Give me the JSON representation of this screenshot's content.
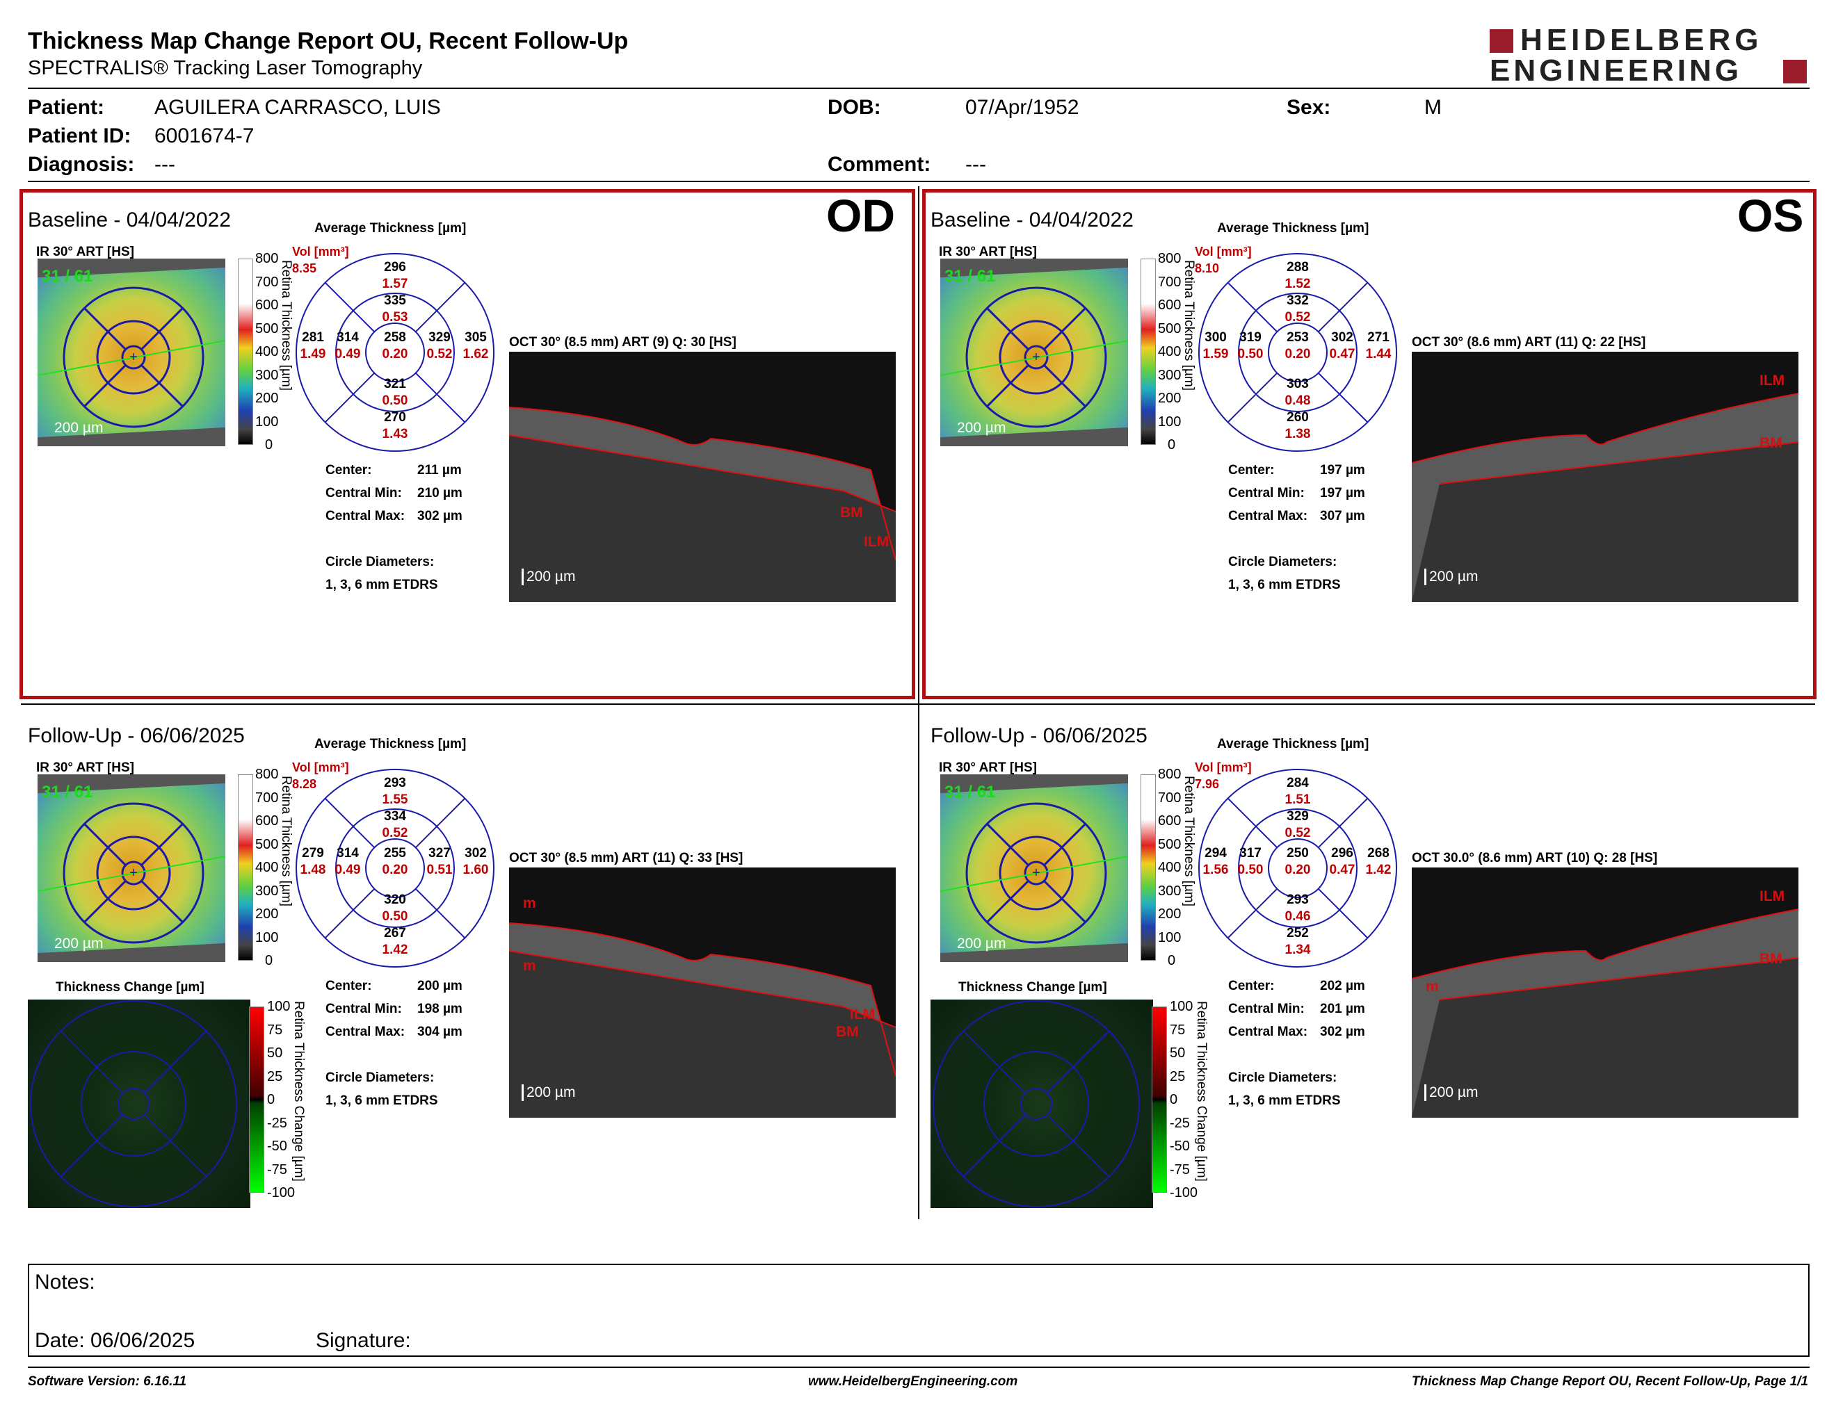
{
  "header": {
    "title": "Thickness Map Change Report OU, Recent Follow-Up",
    "subtitle": "SPECTRALIS® Tracking Laser Tomography",
    "logo_line1": "HEIDELBERG",
    "logo_line2": "ENGINEERING",
    "colors": {
      "brand": "#9b1c2a",
      "frame": "#b01010"
    }
  },
  "patient": {
    "name_label": "Patient:",
    "name": "AGUILERA CARRASCO, LUIS",
    "id_label": "Patient ID:",
    "id": "6001674-7",
    "diagnosis_label": "Diagnosis:",
    "diagnosis": "---",
    "dob_label": "DOB:",
    "dob": "07/Apr/1952",
    "comment_label": "Comment:",
    "comment": "---",
    "sex_label": "Sex:",
    "sex": "M"
  },
  "common": {
    "ir_label": "IR 30° ART [HS]",
    "avg_title": "Average Thickness [µm]",
    "vol_label": "Vol [mm³]",
    "scale_200": "200 µm",
    "center_label": "Center:",
    "cmin_label": "Central Min:",
    "cmax_label": "Central Max:",
    "circ_label": "Circle Diameters:",
    "circ_value": "1, 3, 6 mm ETDRS",
    "retina_axis": "Retina Thickness [µm]",
    "change_title": "Thickness Change [µm]",
    "change_axis": "Retina Thickness Change [µm]",
    "cbar_ticks": [
      "800",
      "700",
      "600",
      "500",
      "400",
      "300",
      "200",
      "100",
      "0"
    ],
    "change_ticks": [
      "100",
      "75",
      "50",
      "25",
      "0",
      "-25",
      "-50",
      "-75",
      "-100"
    ],
    "fixation": "31 / 61"
  },
  "od_label": "OD",
  "os_label": "OS",
  "od_base": {
    "title": "Baseline - 04/04/2022",
    "oct_label": "OCT 30° (8.5 mm) ART (9) Q: 30 [HS]",
    "vol": "8.35",
    "grid": {
      "outer_sup": [
        "296",
        "1.57"
      ],
      "inner_sup": [
        "335",
        "0.53"
      ],
      "outer_temp": [
        "281",
        "1.49"
      ],
      "inner_temp": [
        "314",
        "0.49"
      ],
      "center": [
        "258",
        "0.20"
      ],
      "inner_nas": [
        "329",
        "0.52"
      ],
      "outer_nas": [
        "305",
        "1.62"
      ],
      "inner_inf": [
        "321",
        "0.50"
      ],
      "outer_inf": [
        "270",
        "1.43"
      ]
    },
    "center": "211 µm",
    "cmin": "210 µm",
    "cmax": "302 µm",
    "tags": [
      "BM",
      "ILM"
    ]
  },
  "os_base": {
    "title": "Baseline - 04/04/2022",
    "oct_label": "OCT 30° (8.6 mm) ART (11) Q: 22 [HS]",
    "vol": "8.10",
    "grid": {
      "outer_sup": [
        "288",
        "1.52"
      ],
      "inner_sup": [
        "332",
        "0.52"
      ],
      "outer_temp": [
        "300",
        "1.59"
      ],
      "inner_temp": [
        "319",
        "0.50"
      ],
      "center": [
        "253",
        "0.20"
      ],
      "inner_nas": [
        "302",
        "0.47"
      ],
      "outer_nas": [
        "271",
        "1.44"
      ],
      "inner_inf": [
        "303",
        "0.48"
      ],
      "outer_inf": [
        "260",
        "1.38"
      ]
    },
    "center": "197 µm",
    "cmin": "197 µm",
    "cmax": "307 µm",
    "tags": [
      "ILM",
      "BM"
    ]
  },
  "od_follow": {
    "title": "Follow-Up - 06/06/2025",
    "oct_label": "OCT 30° (8.5 mm) ART (11) Q: 33 [HS]",
    "vol": "8.28",
    "grid": {
      "outer_sup": [
        "293",
        "1.55"
      ],
      "inner_sup": [
        "334",
        "0.52"
      ],
      "outer_temp": [
        "279",
        "1.48"
      ],
      "inner_temp": [
        "314",
        "0.49"
      ],
      "center": [
        "255",
        "0.20"
      ],
      "inner_nas": [
        "327",
        "0.51"
      ],
      "outer_nas": [
        "302",
        "1.60"
      ],
      "inner_inf": [
        "320",
        "0.50"
      ],
      "outer_inf": [
        "267",
        "1.42"
      ]
    },
    "center": "200 µm",
    "cmin": "198 µm",
    "cmax": "304 µm",
    "tags": [
      "m",
      "m",
      "ILM",
      "BM"
    ]
  },
  "os_follow": {
    "title": "Follow-Up - 06/06/2025",
    "oct_label": "OCT 30.0° (8.6 mm) ART (10) Q: 28 [HS]",
    "vol": "7.96",
    "grid": {
      "outer_sup": [
        "284",
        "1.51"
      ],
      "inner_sup": [
        "329",
        "0.52"
      ],
      "outer_temp": [
        "294",
        "1.56"
      ],
      "inner_temp": [
        "317",
        "0.50"
      ],
      "center": [
        "250",
        "0.20"
      ],
      "inner_nas": [
        "296",
        "0.47"
      ],
      "outer_nas": [
        "268",
        "1.42"
      ],
      "inner_inf": [
        "293",
        "0.46"
      ],
      "outer_inf": [
        "252",
        "1.34"
      ]
    },
    "center": "202 µm",
    "cmin": "201 µm",
    "cmax": "302 µm",
    "tags": [
      "ILM",
      "BM",
      "m"
    ]
  },
  "notes": {
    "label": "Notes:",
    "date_label": "Date: 06/06/2025",
    "signature_label": "Signature:"
  },
  "footer": {
    "software": "Software Version: 6.16.11",
    "website": "www.HeidelbergEngineering.com",
    "page": "Thickness Map Change Report OU, Recent Follow-Up, Page 1/1"
  }
}
